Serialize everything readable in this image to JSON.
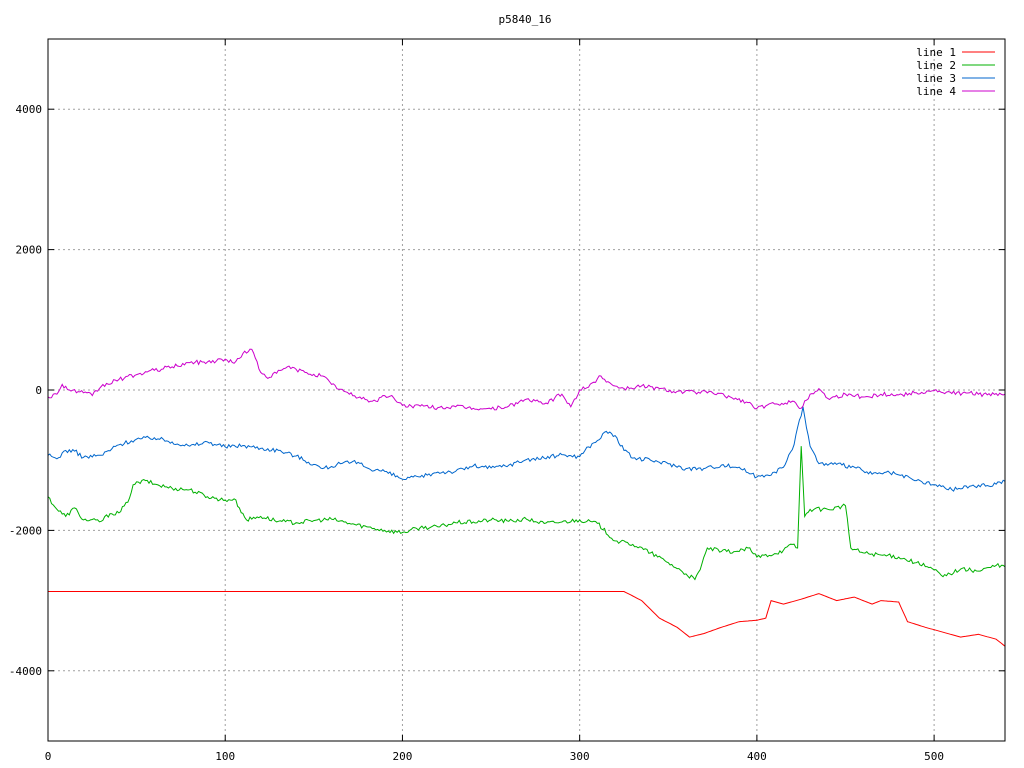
{
  "chart_data": {
    "type": "line",
    "title": "p5840_16",
    "xlabel": "",
    "ylabel": "",
    "xlim": [
      0,
      540
    ],
    "ylim": [
      -5000,
      5000
    ],
    "x_ticks": [
      0,
      100,
      200,
      300,
      400,
      500
    ],
    "y_ticks": [
      -4000,
      -2000,
      0,
      2000,
      4000
    ],
    "grid": true,
    "legend_position": "top-right",
    "series": [
      {
        "name": "line 1",
        "color": "#ff0000",
        "points": [
          [
            0,
            -2870
          ],
          [
            100,
            -2870
          ],
          [
            200,
            -2870
          ],
          [
            300,
            -2870
          ],
          [
            325,
            -2870
          ],
          [
            335,
            -3000
          ],
          [
            345,
            -3250
          ],
          [
            355,
            -3380
          ],
          [
            362,
            -3520
          ],
          [
            370,
            -3470
          ],
          [
            380,
            -3380
          ],
          [
            390,
            -3300
          ],
          [
            400,
            -3280
          ],
          [
            405,
            -3250
          ],
          [
            408,
            -3000
          ],
          [
            415,
            -3050
          ],
          [
            425,
            -2980
          ],
          [
            435,
            -2900
          ],
          [
            445,
            -3000
          ],
          [
            455,
            -2950
          ],
          [
            465,
            -3050
          ],
          [
            470,
            -3000
          ],
          [
            480,
            -3020
          ],
          [
            485,
            -3300
          ],
          [
            495,
            -3380
          ],
          [
            505,
            -3450
          ],
          [
            515,
            -3520
          ],
          [
            525,
            -3480
          ],
          [
            535,
            -3550
          ],
          [
            540,
            -3650
          ]
        ]
      },
      {
        "name": "line 2",
        "color": "#00b000",
        "points": [
          [
            0,
            -1520
          ],
          [
            5,
            -1700
          ],
          [
            10,
            -1800
          ],
          [
            15,
            -1680
          ],
          [
            20,
            -1850
          ],
          [
            30,
            -1870
          ],
          [
            35,
            -1760
          ],
          [
            40,
            -1750
          ],
          [
            45,
            -1600
          ],
          [
            48,
            -1350
          ],
          [
            55,
            -1290
          ],
          [
            60,
            -1340
          ],
          [
            70,
            -1400
          ],
          [
            80,
            -1420
          ],
          [
            90,
            -1520
          ],
          [
            100,
            -1570
          ],
          [
            105,
            -1550
          ],
          [
            108,
            -1680
          ],
          [
            112,
            -1850
          ],
          [
            120,
            -1800
          ],
          [
            130,
            -1870
          ],
          [
            140,
            -1890
          ],
          [
            150,
            -1860
          ],
          [
            160,
            -1840
          ],
          [
            170,
            -1900
          ],
          [
            180,
            -1950
          ],
          [
            190,
            -2000
          ],
          [
            200,
            -2030
          ],
          [
            210,
            -1960
          ],
          [
            220,
            -1950
          ],
          [
            230,
            -1890
          ],
          [
            240,
            -1880
          ],
          [
            250,
            -1850
          ],
          [
            260,
            -1870
          ],
          [
            270,
            -1840
          ],
          [
            280,
            -1900
          ],
          [
            290,
            -1880
          ],
          [
            300,
            -1850
          ],
          [
            310,
            -1900
          ],
          [
            320,
            -2150
          ],
          [
            330,
            -2200
          ],
          [
            340,
            -2320
          ],
          [
            350,
            -2460
          ],
          [
            360,
            -2620
          ],
          [
            365,
            -2700
          ],
          [
            368,
            -2560
          ],
          [
            372,
            -2250
          ],
          [
            380,
            -2300
          ],
          [
            390,
            -2300
          ],
          [
            395,
            -2250
          ],
          [
            400,
            -2380
          ],
          [
            410,
            -2330
          ],
          [
            415,
            -2280
          ],
          [
            420,
            -2200
          ],
          [
            423,
            -2250
          ],
          [
            425,
            -800
          ],
          [
            427,
            -1800
          ],
          [
            430,
            -1700
          ],
          [
            440,
            -1700
          ],
          [
            450,
            -1650
          ],
          [
            453,
            -2250
          ],
          [
            460,
            -2320
          ],
          [
            470,
            -2350
          ],
          [
            480,
            -2380
          ],
          [
            490,
            -2460
          ],
          [
            500,
            -2560
          ],
          [
            505,
            -2660
          ],
          [
            515,
            -2550
          ],
          [
            525,
            -2580
          ],
          [
            535,
            -2500
          ],
          [
            540,
            -2520
          ]
        ]
      },
      {
        "name": "line 3",
        "color": "#0066cc",
        "points": [
          [
            0,
            -930
          ],
          [
            5,
            -980
          ],
          [
            10,
            -860
          ],
          [
            15,
            -870
          ],
          [
            20,
            -960
          ],
          [
            30,
            -930
          ],
          [
            40,
            -780
          ],
          [
            50,
            -700
          ],
          [
            60,
            -680
          ],
          [
            70,
            -740
          ],
          [
            80,
            -800
          ],
          [
            90,
            -740
          ],
          [
            100,
            -810
          ],
          [
            110,
            -790
          ],
          [
            120,
            -830
          ],
          [
            130,
            -860
          ],
          [
            140,
            -940
          ],
          [
            150,
            -1060
          ],
          [
            155,
            -1120
          ],
          [
            165,
            -1050
          ],
          [
            175,
            -1030
          ],
          [
            180,
            -1110
          ],
          [
            190,
            -1160
          ],
          [
            200,
            -1270
          ],
          [
            210,
            -1240
          ],
          [
            220,
            -1170
          ],
          [
            230,
            -1160
          ],
          [
            240,
            -1080
          ],
          [
            250,
            -1110
          ],
          [
            260,
            -1070
          ],
          [
            270,
            -990
          ],
          [
            280,
            -970
          ],
          [
            290,
            -920
          ],
          [
            300,
            -950
          ],
          [
            305,
            -810
          ],
          [
            310,
            -720
          ],
          [
            315,
            -590
          ],
          [
            320,
            -650
          ],
          [
            325,
            -860
          ],
          [
            330,
            -970
          ],
          [
            340,
            -1000
          ],
          [
            350,
            -1050
          ],
          [
            360,
            -1120
          ],
          [
            370,
            -1120
          ],
          [
            380,
            -1070
          ],
          [
            390,
            -1100
          ],
          [
            400,
            -1240
          ],
          [
            410,
            -1170
          ],
          [
            415,
            -1100
          ],
          [
            420,
            -850
          ],
          [
            426,
            -240
          ],
          [
            430,
            -800
          ],
          [
            435,
            -1050
          ],
          [
            445,
            -1060
          ],
          [
            455,
            -1100
          ],
          [
            465,
            -1200
          ],
          [
            475,
            -1180
          ],
          [
            480,
            -1210
          ],
          [
            490,
            -1290
          ],
          [
            500,
            -1350
          ],
          [
            510,
            -1420
          ],
          [
            520,
            -1370
          ],
          [
            530,
            -1360
          ],
          [
            540,
            -1300
          ]
        ]
      },
      {
        "name": "line 4",
        "color": "#cc00cc",
        "points": [
          [
            0,
            -100
          ],
          [
            5,
            -60
          ],
          [
            8,
            80
          ],
          [
            12,
            0
          ],
          [
            20,
            -40
          ],
          [
            25,
            -80
          ],
          [
            30,
            50
          ],
          [
            40,
            150
          ],
          [
            50,
            220
          ],
          [
            60,
            280
          ],
          [
            70,
            330
          ],
          [
            80,
            390
          ],
          [
            90,
            400
          ],
          [
            100,
            440
          ],
          [
            105,
            380
          ],
          [
            110,
            520
          ],
          [
            115,
            580
          ],
          [
            120,
            250
          ],
          [
            125,
            180
          ],
          [
            135,
            330
          ],
          [
            145,
            250
          ],
          [
            155,
            200
          ],
          [
            160,
            80
          ],
          [
            170,
            -60
          ],
          [
            180,
            -140
          ],
          [
            185,
            -160
          ],
          [
            190,
            -80
          ],
          [
            195,
            -110
          ],
          [
            200,
            -220
          ],
          [
            210,
            -230
          ],
          [
            220,
            -250
          ],
          [
            230,
            -240
          ],
          [
            240,
            -260
          ],
          [
            250,
            -270
          ],
          [
            260,
            -230
          ],
          [
            270,
            -130
          ],
          [
            280,
            -200
          ],
          [
            290,
            -60
          ],
          [
            295,
            -240
          ],
          [
            300,
            0
          ],
          [
            305,
            40
          ],
          [
            312,
            200
          ],
          [
            318,
            80
          ],
          [
            325,
            20
          ],
          [
            335,
            60
          ],
          [
            345,
            20
          ],
          [
            355,
            -20
          ],
          [
            365,
            -30
          ],
          [
            375,
            -40
          ],
          [
            385,
            -100
          ],
          [
            395,
            -180
          ],
          [
            400,
            -260
          ],
          [
            410,
            -200
          ],
          [
            420,
            -160
          ],
          [
            425,
            -260
          ],
          [
            430,
            -60
          ],
          [
            435,
            20
          ],
          [
            440,
            -120
          ],
          [
            450,
            -60
          ],
          [
            460,
            -100
          ],
          [
            470,
            -60
          ],
          [
            480,
            -70
          ],
          [
            490,
            -40
          ],
          [
            500,
            -10
          ],
          [
            510,
            -50
          ],
          [
            520,
            -40
          ],
          [
            530,
            -70
          ],
          [
            540,
            -60
          ]
        ]
      }
    ]
  }
}
